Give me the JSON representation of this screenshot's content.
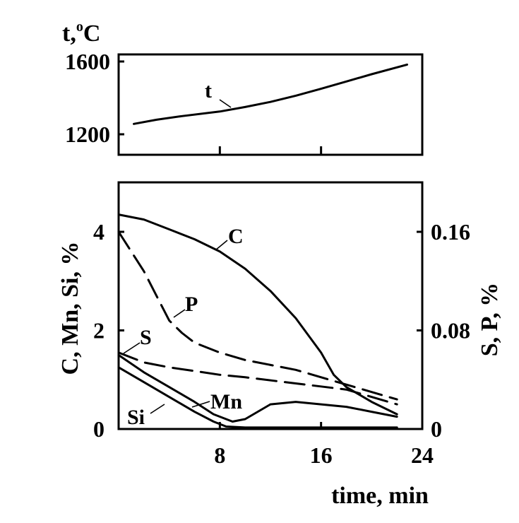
{
  "chart_data": [
    {
      "type": "line",
      "panel": "top",
      "ylabel": "t,ºC",
      "yticks": [
        1200,
        1600
      ],
      "ylim": [
        1200,
        1600
      ],
      "xlim": [
        0,
        24
      ],
      "grid": false,
      "series": [
        {
          "name": "t",
          "style": "solid",
          "x": [
            1.2,
            3,
            5,
            8,
            10,
            12,
            14,
            16,
            18,
            20,
            22.8
          ],
          "y": [
            1257,
            1280,
            1300,
            1325,
            1350,
            1378,
            1412,
            1450,
            1490,
            1530,
            1583
          ]
        }
      ]
    },
    {
      "type": "line",
      "panel": "bottom",
      "xlabel": "time, min",
      "xticks": [
        "8",
        "16",
        "24"
      ],
      "xlim": [
        0,
        24
      ],
      "ylabel_left": "C, Mn, Si, %",
      "yticks_left": [
        "4",
        "2",
        "0"
      ],
      "ylim_left": [
        0,
        5
      ],
      "ylabel_right": "S, P, %",
      "yticks_right": [
        "0.16",
        "0.08",
        "0"
      ],
      "ylim_right": [
        0,
        0.2
      ],
      "grid": false,
      "series": [
        {
          "name": "C",
          "axis": "left",
          "style": "solid",
          "x": [
            0,
            2,
            4,
            6,
            8,
            10,
            12,
            14,
            16,
            17,
            18,
            20,
            22
          ],
          "y": [
            4.35,
            4.25,
            4.05,
            3.85,
            3.6,
            3.25,
            2.8,
            2.25,
            1.55,
            1.1,
            0.85,
            0.55,
            0.3
          ]
        },
        {
          "name": "P",
          "axis": "right",
          "style": "dashed",
          "x": [
            0,
            2,
            4,
            5,
            6,
            8,
            10,
            14,
            18,
            22
          ],
          "y": [
            0.16,
            0.128,
            0.088,
            0.078,
            0.07,
            0.062,
            0.056,
            0.048,
            0.036,
            0.024
          ]
        },
        {
          "name": "S",
          "axis": "right",
          "style": "dashed",
          "x": [
            0,
            2,
            4,
            6,
            8,
            10,
            14,
            18,
            22
          ],
          "y": [
            0.062,
            0.054,
            0.05,
            0.047,
            0.044,
            0.042,
            0.037,
            0.032,
            0.02
          ]
        },
        {
          "name": "Mn",
          "axis": "left",
          "style": "solid",
          "x": [
            0,
            2,
            4,
            6,
            7.5,
            9,
            10,
            12,
            14,
            16,
            18,
            20,
            22
          ],
          "y": [
            1.5,
            1.15,
            0.85,
            0.55,
            0.3,
            0.15,
            0.2,
            0.5,
            0.55,
            0.5,
            0.45,
            0.35,
            0.25
          ]
        },
        {
          "name": "Si",
          "axis": "left",
          "style": "solid",
          "x": [
            0,
            2,
            4,
            6,
            7.5,
            8.5,
            10,
            16,
            22
          ],
          "y": [
            1.25,
            0.95,
            0.65,
            0.35,
            0.15,
            0.05,
            0.03,
            0.03,
            0.03
          ]
        }
      ]
    }
  ]
}
